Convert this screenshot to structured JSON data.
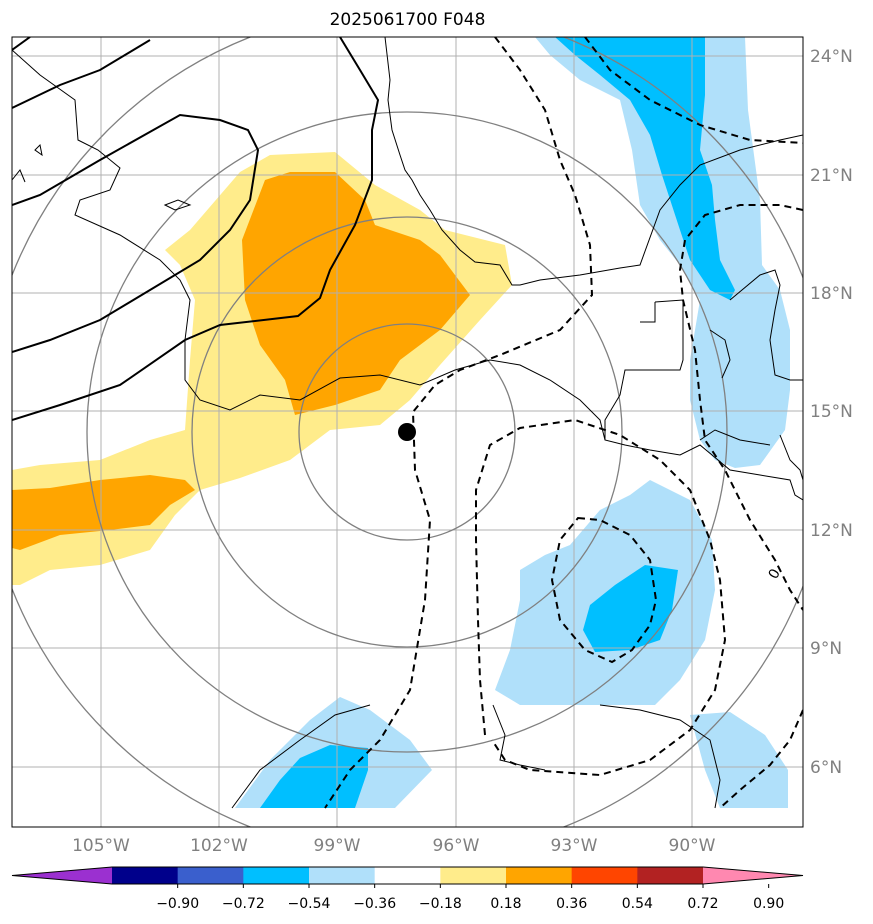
{
  "title": "2025061700 F048",
  "lon_labels": [
    "105°W",
    "102°W",
    "99°W",
    "96°W",
    "93°W",
    "90°W"
  ],
  "lat_labels": [
    "24°N",
    "21°N",
    "18°N",
    "15°N",
    "12°N",
    "9°N",
    "6°N"
  ],
  "contour_label": "0",
  "colorbar": {
    "ticks": [
      "−0.90",
      "−0.72",
      "−0.54",
      "−0.36",
      "−0.18",
      "0.18",
      "0.36",
      "0.54",
      "0.72",
      "0.90"
    ],
    "colors": [
      "#9b30d0",
      "#00008b",
      "#3a5fcd",
      "#00bfff",
      "#b0e0fa",
      "#ffffff",
      "#ffec8b",
      "#ffa500",
      "#ff4500",
      "#b22222",
      "#ff88b0"
    ]
  },
  "colors": {
    "light_yellow": "#ffec8b",
    "orange": "#ffa500",
    "light_blue": "#b0e0fa",
    "deep_sky_blue": "#00bfff",
    "grid": "#b0b0b0",
    "range_ring": "#808080",
    "tick_label": "#808080"
  },
  "center_marker": "storm-center-dot"
}
